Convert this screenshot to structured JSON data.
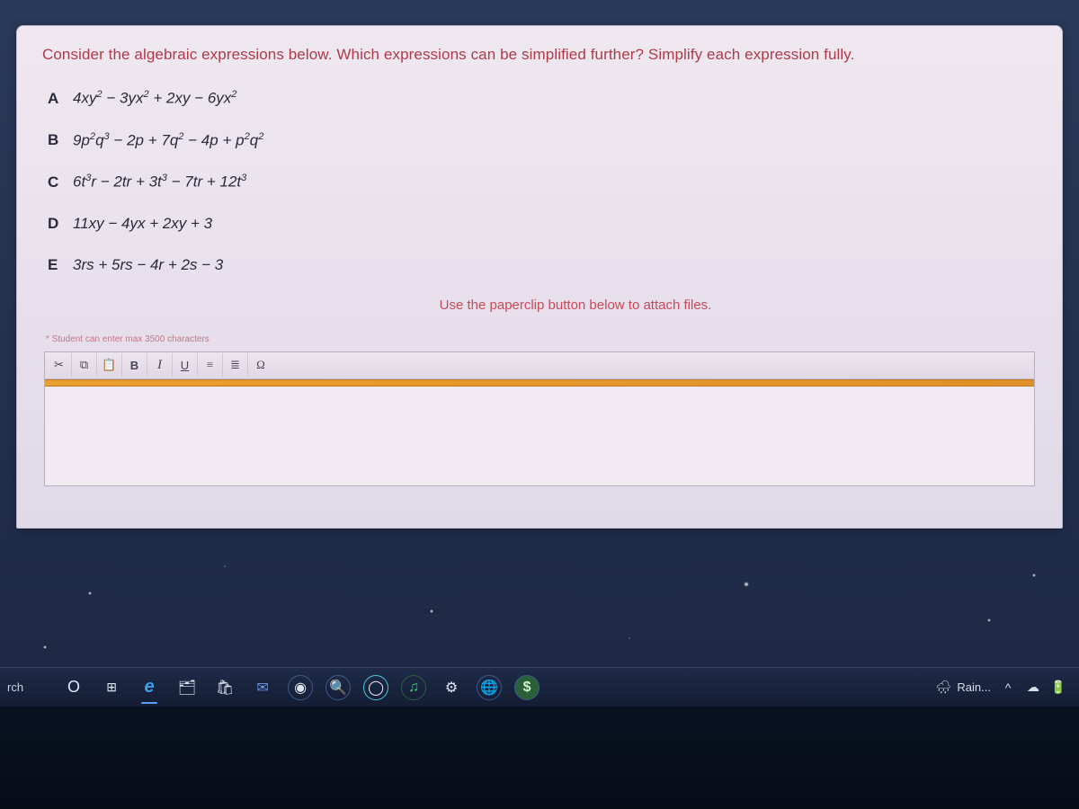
{
  "question": {
    "prompt": "Consider the algebraic expressions below. Which expressions can be simplified further? Simplify each expression fully.",
    "options": [
      {
        "letter": "A",
        "expression_html": "4xy<sup>2</sup> − 3yx<sup>2</sup> + 2xy − 6yx<sup>2</sup>"
      },
      {
        "letter": "B",
        "expression_html": "9p<sup>2</sup>q<sup>3</sup> − 2p + 7q<sup>2</sup> − 4p + p<sup>2</sup>q<sup>2</sup>"
      },
      {
        "letter": "C",
        "expression_html": "6t<sup>3</sup>r − 2tr + 3t<sup>3</sup> − 7tr + 12t<sup>3</sup>"
      },
      {
        "letter": "D",
        "expression_html": "11xy − 4yx + 2xy + 3"
      },
      {
        "letter": "E",
        "expression_html": "3rs + 5rs − 4r + 2s − 3"
      }
    ],
    "attach_hint": "Use the paperclip button below to attach files.",
    "char_note": "* Student can enter max 3500 characters"
  },
  "editor": {
    "buttons": {
      "cut": "✂",
      "copy": "⧉",
      "paste": "📋",
      "bold": "B",
      "italic": "I",
      "underline": "U",
      "ol": "≡",
      "ul": "≣",
      "omega": "Ω"
    },
    "accent_color": "#e09028"
  },
  "taskbar": {
    "search_label": "rch",
    "cortana": "O",
    "taskview": "⊞",
    "icons": {
      "edge": {
        "glyph": "e",
        "color": "#3aa0e8",
        "title": "edge"
      },
      "files": {
        "glyph": "🗂",
        "color": "#e8c060",
        "title": "file-explorer"
      },
      "store": {
        "glyph": "🛍",
        "color": "#e85a5a",
        "title": "store"
      },
      "mail": {
        "glyph": "✉",
        "color": "#4a78c8",
        "title": "mail"
      },
      "chrome": {
        "glyph": "◉",
        "color": "#e8e8e8",
        "title": "chrome"
      },
      "zoom": {
        "glyph": "🔍",
        "color": "#4a88d8",
        "title": "search-app"
      },
      "circle": {
        "glyph": "◯",
        "color": "#48c8d8",
        "title": "app"
      },
      "spotify": {
        "glyph": "♫",
        "color": "#38d070",
        "title": "music"
      },
      "settings": {
        "glyph": "⚙",
        "color": "#c8d0e0",
        "title": "settings"
      },
      "globe": {
        "glyph": "🌐",
        "color": "#4890e0",
        "title": "browser"
      },
      "green": {
        "glyph": "$",
        "color": "#40c060",
        "title": "finance"
      }
    },
    "tray": {
      "weather_icon": "🌧",
      "weather_text": "Rain...",
      "chevron": "^",
      "cloud": "☁",
      "battery": "🔋"
    }
  },
  "colors": {
    "panel_bg_top": "#f0e8f0",
    "panel_bg_bottom": "#e0dae8",
    "prompt_text": "#b03a48",
    "option_text": "#2a2a3a",
    "hint_text": "#c84a58",
    "note_text": "#c0788a",
    "taskbar_bg": "#1a2540"
  }
}
